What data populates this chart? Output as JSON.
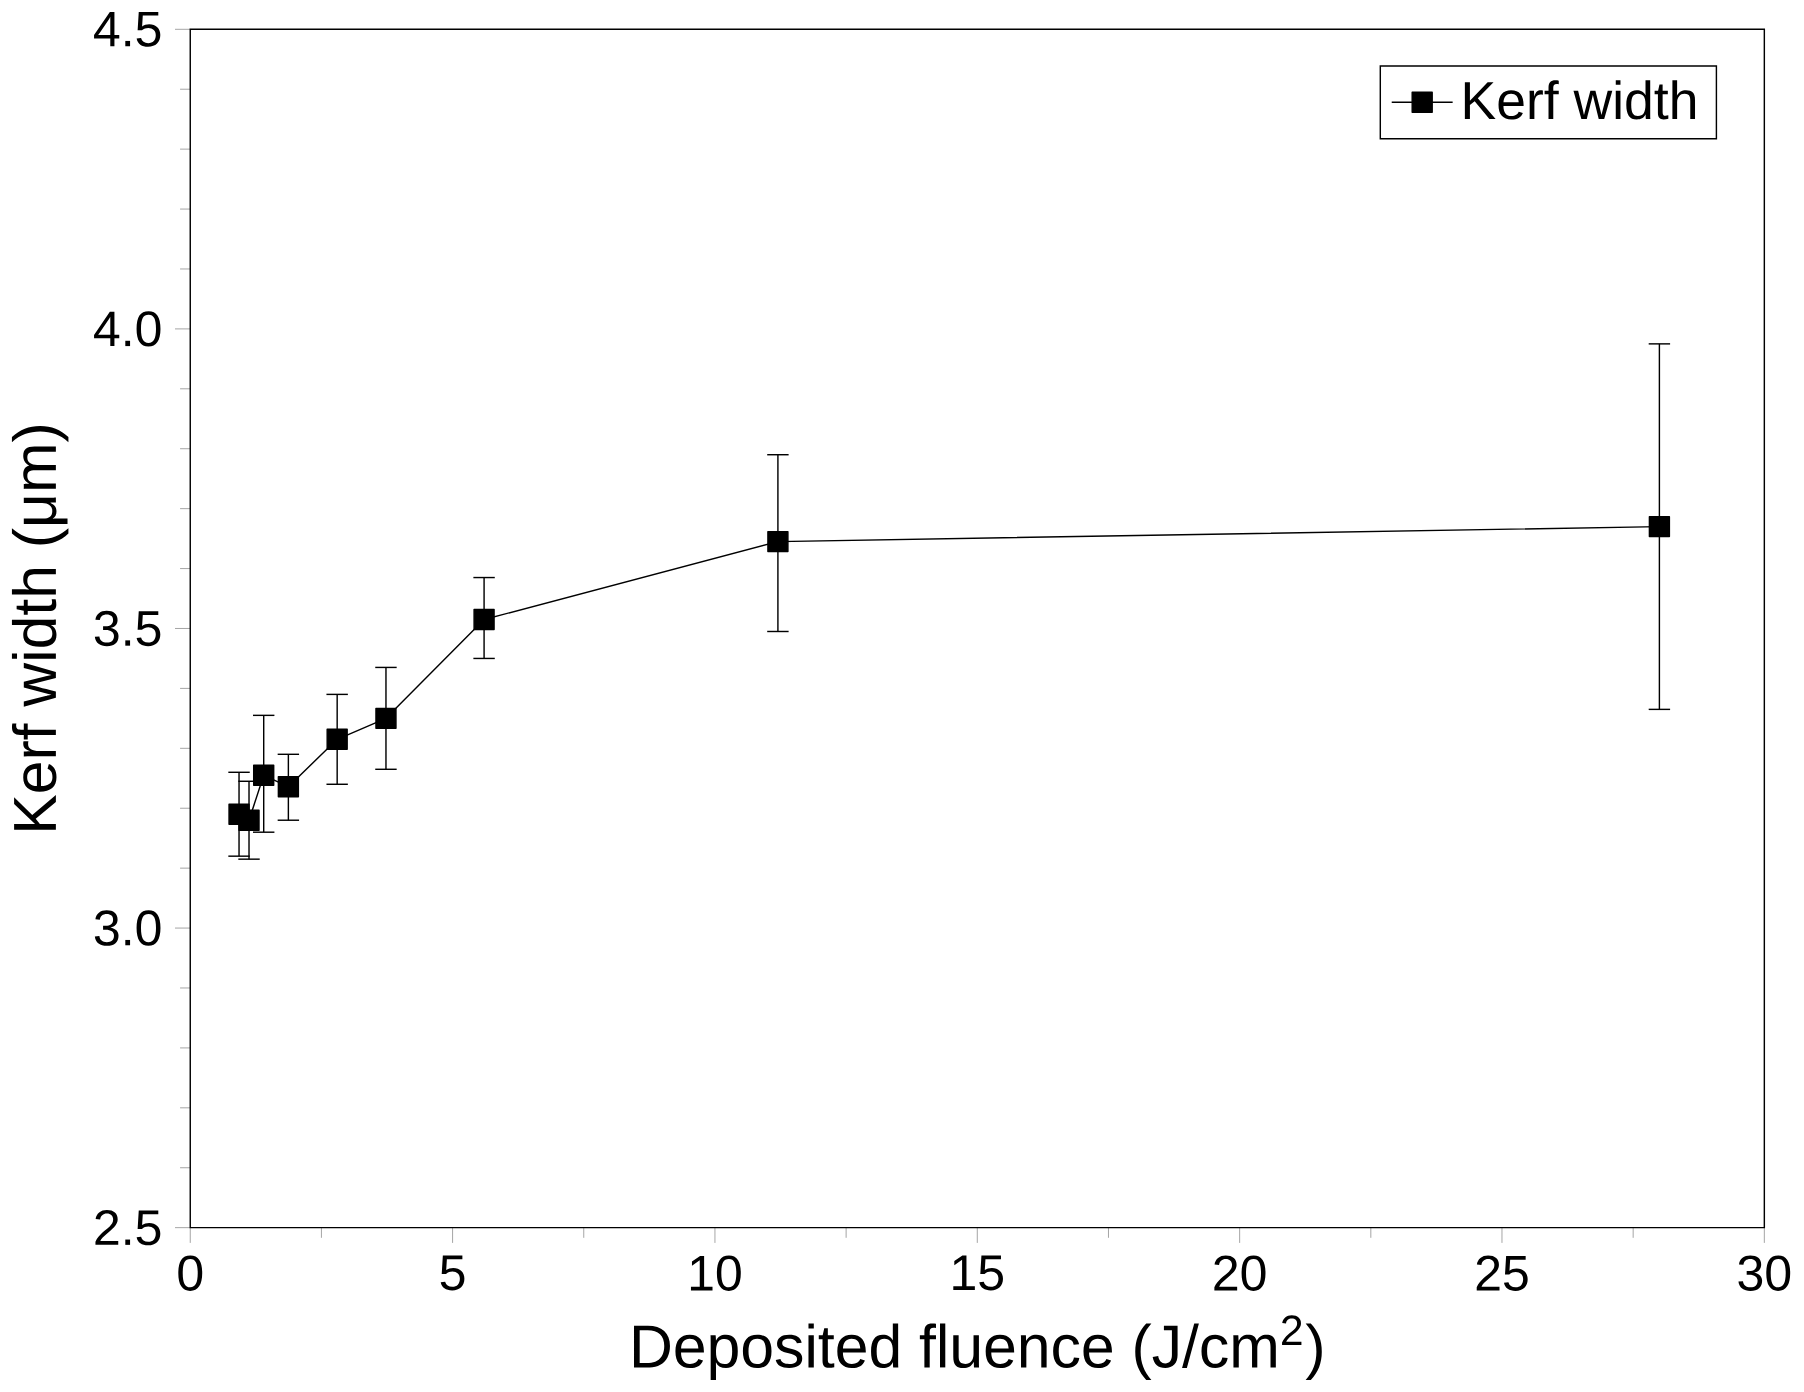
{
  "chart_data": {
    "type": "line",
    "xlabel": "Deposited fluence (J/cm$^{2}$)",
    "ylabel": "Kerf width (μm)",
    "x": [
      0.93,
      1.12,
      1.4,
      1.87,
      2.8,
      3.73,
      5.6,
      11.2,
      28
    ],
    "series": [
      {
        "name": "Kerf width",
        "color": "#000000",
        "values": [
          3.19,
          3.18,
          3.255,
          3.236,
          3.315,
          3.35,
          3.515,
          3.645,
          3.67
        ],
        "errors": [
          [
            3.12,
            3.26
          ],
          [
            3.115,
            3.245
          ],
          [
            3.16,
            3.355
          ],
          [
            3.18,
            3.29
          ],
          [
            3.24,
            3.39
          ],
          [
            3.265,
            3.435
          ],
          [
            3.45,
            3.585
          ],
          [
            3.495,
            3.79
          ],
          [
            3.365,
            3.975
          ]
        ]
      }
    ],
    "xlim": [
      0,
      30
    ],
    "xticks": [
      0,
      5,
      10,
      15,
      20,
      25,
      30
    ],
    "ylim": [
      2.5,
      4.5
    ],
    "yticks": [
      2.5,
      {
        "value": 3,
        "label": "3.0"
      },
      3.5,
      {
        "value": 4,
        "label": "4.0"
      },
      4.5
    ],
    "legend": "top right",
    "marker": "square",
    "line_style": "solid",
    "grid": false
  }
}
